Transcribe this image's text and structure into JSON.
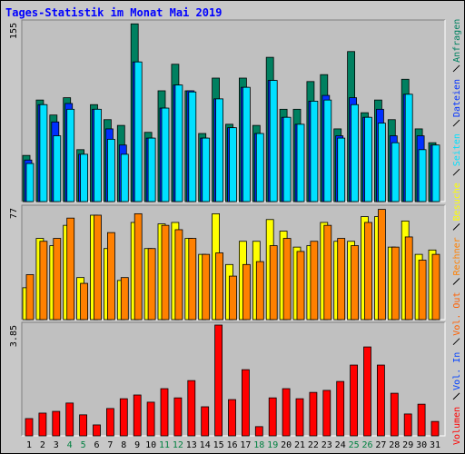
{
  "chart_data": [
    {
      "type": "bar",
      "title": "Tages-Statistik im Monat Mai 2019",
      "ylim": [
        0,
        155
      ],
      "yticks": [
        155
      ],
      "series": [
        {
          "name": "Anfragen",
          "color": "#008060",
          "values": [
            40,
            88,
            75,
            90,
            45,
            84,
            71,
            66,
            154,
            60,
            96,
            119,
            96,
            59,
            107,
            67,
            107,
            66,
            125,
            80,
            80,
            104,
            110,
            63,
            130,
            77,
            88,
            71,
            106,
            63,
            51
          ]
        },
        {
          "name": "Dateien",
          "color": "#0030ff",
          "values": [
            36,
            84,
            69,
            85,
            41,
            80,
            63,
            49,
            121,
            55,
            81,
            101,
            96,
            55,
            89,
            64,
            99,
            59,
            105,
            73,
            67,
            87,
            92,
            57,
            90,
            73,
            80,
            57,
            93,
            57,
            49
          ]
        },
        {
          "name": "Seiten",
          "color": "#00e0ff",
          "values": [
            33,
            84,
            57,
            80,
            41,
            80,
            54,
            41,
            121,
            55,
            81,
            101,
            95,
            55,
            89,
            64,
            99,
            59,
            105,
            73,
            67,
            87,
            88,
            55,
            84,
            73,
            68,
            51,
            93,
            45,
            49
          ]
        }
      ]
    },
    {
      "type": "bar",
      "ylim": [
        0,
        77
      ],
      "yticks": [
        77
      ],
      "series": [
        {
          "name": "Besuche",
          "color": "#ffff00",
          "values": [
            22,
            56,
            51,
            65,
            29,
            72,
            49,
            27,
            67,
            49,
            66,
            67,
            56,
            45,
            73,
            38,
            54,
            54,
            69,
            61,
            50,
            51,
            67,
            54,
            54,
            71,
            71,
            50,
            68,
            45,
            48
          ]
        },
        {
          "name": "Rechner",
          "color": "#ff8000",
          "values": [
            31,
            54,
            56,
            70,
            25,
            72,
            60,
            29,
            73,
            49,
            65,
            62,
            56,
            45,
            46,
            30,
            38,
            40,
            51,
            56,
            47,
            54,
            65,
            56,
            51,
            67,
            76,
            50,
            57,
            41,
            45
          ]
        }
      ]
    },
    {
      "type": "bar",
      "ylim": [
        0,
        3.85
      ],
      "yticks": [
        3.85
      ],
      "categories": [
        "1",
        "2",
        "3",
        "4",
        "5",
        "6",
        "7",
        "8",
        "9",
        "10",
        "11",
        "12",
        "13",
        "14",
        "15",
        "16",
        "17",
        "18",
        "19",
        "20",
        "21",
        "22",
        "23",
        "24",
        "25",
        "26",
        "27",
        "28",
        "29",
        "30",
        "31"
      ],
      "category_colors": [
        "#000000",
        "#000000",
        "#000000",
        "#008040",
        "#008040",
        "#000000",
        "#000000",
        "#000000",
        "#000000",
        "#000000",
        "#008040",
        "#008040",
        "#000000",
        "#000000",
        "#000000",
        "#000000",
        "#000000",
        "#008040",
        "#008040",
        "#000000",
        "#000000",
        "#000000",
        "#000000",
        "#000000",
        "#008040",
        "#008040",
        "#000000",
        "#000000",
        "#000000",
        "#000000",
        "#000000"
      ],
      "series": [
        {
          "name": "Vol. Out",
          "color": "#ff6000"
        },
        {
          "name": "Vol. In",
          "color": "#0040ff"
        },
        {
          "name": "Volumen",
          "color": "#ff0000",
          "values": [
            0.6,
            0.79,
            0.85,
            1.14,
            0.73,
            0.38,
            0.95,
            1.29,
            1.42,
            1.17,
            1.64,
            1.32,
            1.92,
            1.01,
            3.85,
            1.26,
            2.3,
            0.32,
            1.32,
            1.64,
            1.29,
            1.51,
            1.58,
            1.89,
            2.46,
            3.09,
            2.46,
            1.48,
            0.76,
            1.1,
            0.5
          ]
        }
      ]
    }
  ]
}
